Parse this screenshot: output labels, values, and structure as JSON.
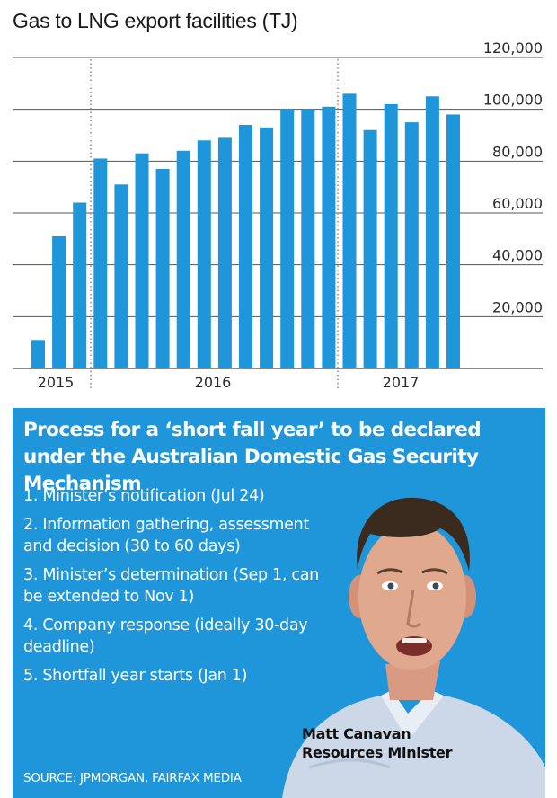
{
  "chart_data": {
    "type": "bar",
    "title": "Gas to LNG export facilities (TJ)",
    "xlabel": "",
    "ylabel": "",
    "ylim": [
      0,
      120000
    ],
    "yticks": [
      20000,
      40000,
      60000,
      80000,
      100000,
      120000
    ],
    "ytick_labels": [
      "20,000",
      "40,000",
      "60,000",
      "80,000",
      "100,000",
      "120,000"
    ],
    "year_labels": [
      "2015",
      "2016",
      "2017"
    ],
    "grid": true,
    "bar_color": "#1f96da",
    "values": [
      11000,
      51000,
      64000,
      81000,
      71000,
      83000,
      77000,
      84000,
      88000,
      89000,
      94000,
      93000,
      100000,
      100000,
      101000,
      106000,
      92000,
      102000,
      95000,
      105000,
      98000
    ]
  },
  "panel": {
    "title": "Process for a ‘short fall year’ to be declared under the Australian Domestic Gas Security Mechanism",
    "steps": [
      "1. Minister’s notification (Jul 24)",
      "2. Information gathering, assessment and decision (30 to 60 days)",
      "3. Minister’s determination (Sep 1, can be extended to Nov 1)",
      "4. Company response (ideally 30-day deadline)",
      "5. Shortfall year starts (Jan 1)"
    ],
    "caption_name": "Matt Canavan",
    "caption_role": "Resources Minister",
    "source": "SOURCE: JPMORGAN, FAIRFAX MEDIA",
    "background_color": "#1f96da"
  }
}
